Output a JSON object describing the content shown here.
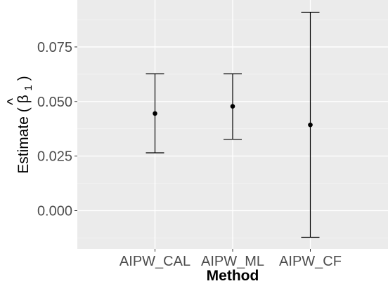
{
  "chart_data": {
    "type": "errorbar",
    "categories": [
      "AIPW_CAL",
      "AIPW_ML",
      "AIPW_CF"
    ],
    "series": [
      {
        "estimate": [
          0.0445,
          0.0478,
          0.0393
        ],
        "lower": [
          0.0265,
          0.0327,
          -0.0122
        ],
        "upper": [
          0.0627,
          0.0627,
          0.0909
        ]
      }
    ],
    "xlabel": "Method",
    "ylabel": "Estimate",
    "ylabel_symbol": "β",
    "ylabel_subscript": "1",
    "ylabel_hat": "^",
    "yticks": [
      0.0,
      0.025,
      0.05,
      0.075
    ],
    "ytick_labels": [
      "0.000",
      "0.025",
      "0.050",
      "0.075"
    ],
    "ylim": [
      -0.0175,
      0.0965
    ],
    "grid": true,
    "colors": {
      "panel_background": "#ebebeb",
      "grid_major": "#ffffff",
      "grid_minor": "#f5f5f5",
      "point": "#000000",
      "errorbar": "#000000",
      "tick_label": "#4d4d4d"
    }
  }
}
